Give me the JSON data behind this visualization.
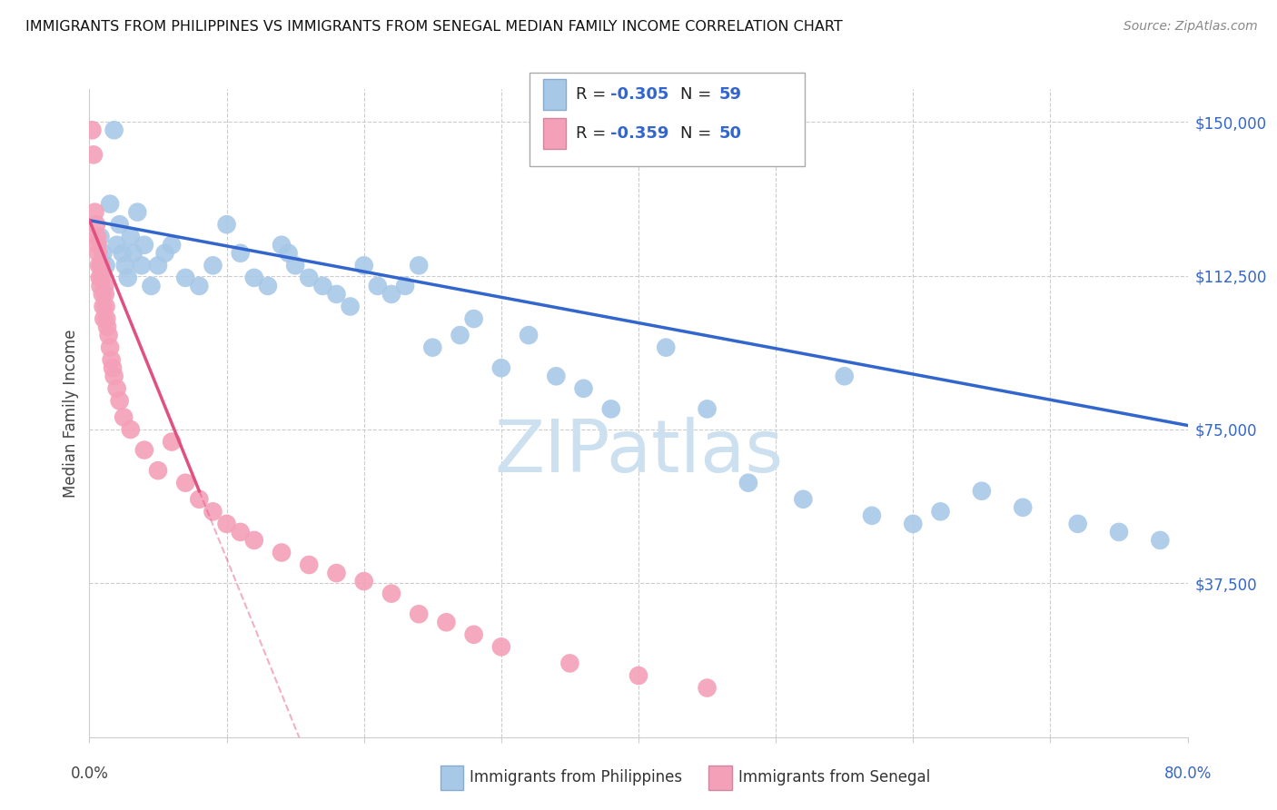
{
  "title": "IMMIGRANTS FROM PHILIPPINES VS IMMIGRANTS FROM SENEGAL MEDIAN FAMILY INCOME CORRELATION CHART",
  "source": "Source: ZipAtlas.com",
  "ylabel": "Median Family Income",
  "yticks": [
    0,
    37500,
    75000,
    112500,
    150000
  ],
  "ytick_labels": [
    "",
    "$37,500",
    "$75,000",
    "$112,500",
    "$150,000"
  ],
  "xlim": [
    0.0,
    80.0
  ],
  "ylim": [
    0,
    158000
  ],
  "r_philippines": -0.305,
  "n_philippines": 59,
  "r_senegal": -0.359,
  "n_senegal": 50,
  "color_philippines": "#a8c8e8",
  "color_senegal": "#f4a0b8",
  "trendline_philippines_color": "#3366cc",
  "trendline_senegal_color": "#e05080",
  "legend_label_philippines": "Immigrants from Philippines",
  "legend_label_senegal": "Immigrants from Senegal",
  "watermark": "ZIPatlas",
  "watermark_color": "#cce0f0",
  "philippines_x": [
    0.8,
    1.0,
    1.2,
    1.5,
    1.8,
    2.0,
    2.2,
    2.4,
    2.6,
    2.8,
    3.0,
    3.2,
    3.5,
    3.8,
    4.0,
    4.5,
    5.0,
    5.5,
    6.0,
    7.0,
    8.0,
    9.0,
    10.0,
    11.0,
    12.0,
    13.0,
    14.0,
    14.5,
    15.0,
    16.0,
    17.0,
    18.0,
    19.0,
    20.0,
    21.0,
    22.0,
    23.0,
    24.0,
    25.0,
    27.0,
    28.0,
    30.0,
    32.0,
    34.0,
    36.0,
    38.0,
    42.0,
    45.0,
    48.0,
    52.0,
    55.0,
    57.0,
    60.0,
    62.0,
    65.0,
    68.0,
    72.0,
    75.0,
    78.0
  ],
  "philippines_y": [
    122000,
    118000,
    115000,
    130000,
    148000,
    120000,
    125000,
    118000,
    115000,
    112000,
    122000,
    118000,
    128000,
    115000,
    120000,
    110000,
    115000,
    118000,
    120000,
    112000,
    110000,
    115000,
    125000,
    118000,
    112000,
    110000,
    120000,
    118000,
    115000,
    112000,
    110000,
    108000,
    105000,
    115000,
    110000,
    108000,
    110000,
    115000,
    95000,
    98000,
    102000,
    90000,
    98000,
    88000,
    85000,
    80000,
    95000,
    80000,
    62000,
    58000,
    88000,
    54000,
    52000,
    55000,
    60000,
    56000,
    52000,
    50000,
    48000
  ],
  "senegal_x": [
    0.2,
    0.3,
    0.4,
    0.5,
    0.55,
    0.6,
    0.65,
    0.7,
    0.75,
    0.8,
    0.85,
    0.9,
    0.95,
    1.0,
    1.05,
    1.1,
    1.15,
    1.2,
    1.25,
    1.3,
    1.4,
    1.5,
    1.6,
    1.7,
    1.8,
    2.0,
    2.2,
    2.5,
    3.0,
    4.0,
    5.0,
    6.0,
    7.0,
    8.0,
    9.0,
    10.0,
    11.0,
    12.0,
    14.0,
    16.0,
    18.0,
    20.0,
    22.0,
    24.0,
    26.0,
    28.0,
    30.0,
    35.0,
    40.0,
    45.0
  ],
  "senegal_y": [
    148000,
    142000,
    128000,
    125000,
    122000,
    120000,
    118000,
    115000,
    112000,
    110000,
    115000,
    112000,
    108000,
    105000,
    102000,
    110000,
    108000,
    105000,
    102000,
    100000,
    98000,
    95000,
    92000,
    90000,
    88000,
    85000,
    82000,
    78000,
    75000,
    70000,
    65000,
    72000,
    62000,
    58000,
    55000,
    52000,
    50000,
    48000,
    45000,
    42000,
    40000,
    38000,
    35000,
    30000,
    28000,
    25000,
    22000,
    18000,
    15000,
    12000
  ],
  "grid_color": "#cccccc",
  "spine_color": "#cccccc"
}
